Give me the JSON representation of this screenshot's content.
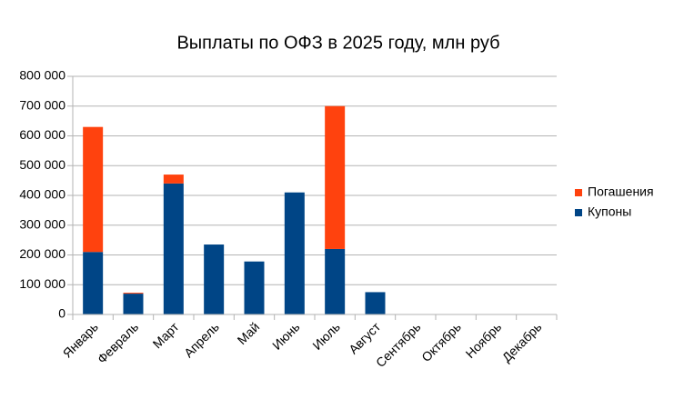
{
  "chart_data": {
    "type": "stacked_bar",
    "title": "Выплаты по ОФЗ в 2025 году, млн руб",
    "categories": [
      "Январь",
      "Февраль",
      "Март",
      "Апрель",
      "Май",
      "Июнь",
      "Июль",
      "Август",
      "Сентябрь",
      "Октябрь",
      "Ноябрь",
      "Декабрь"
    ],
    "series": [
      {
        "name": "Купоны",
        "color": "#004586",
        "values": [
          210000,
          70000,
          440000,
          235000,
          178000,
          410000,
          220000,
          75000,
          null,
          null,
          null,
          null
        ]
      },
      {
        "name": "Погашения",
        "color": "#ff420e",
        "values": [
          420000,
          3000,
          30000,
          null,
          null,
          null,
          480000,
          null,
          null,
          null,
          null,
          null
        ]
      }
    ],
    "ylim": [
      0,
      800000
    ],
    "yticks": [
      {
        "value": 0,
        "label": "0"
      },
      {
        "value": 100000,
        "label": "100 000"
      },
      {
        "value": 200000,
        "label": "200 000"
      },
      {
        "value": 300000,
        "label": "300 000"
      },
      {
        "value": 400000,
        "label": "400 000"
      },
      {
        "value": 500000,
        "label": "500 000"
      },
      {
        "value": 600000,
        "label": "600 000"
      },
      {
        "value": 700000,
        "label": "700 000"
      },
      {
        "value": 800000,
        "label": "800 000"
      }
    ],
    "grid": true,
    "legend": "right"
  }
}
